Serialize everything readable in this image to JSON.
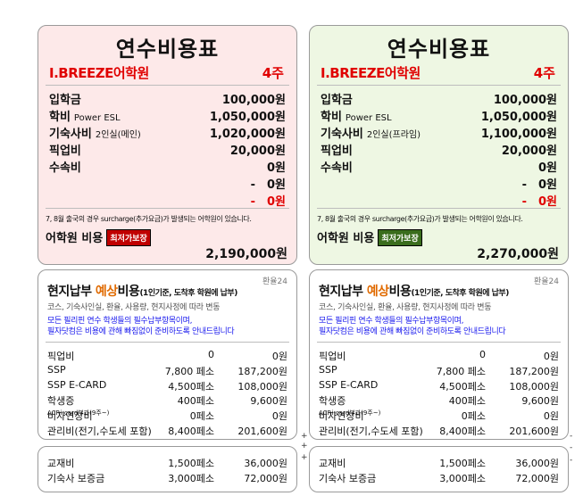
{
  "left": {
    "title": "연수비용표",
    "school": "I.BREEZE어학원",
    "weeks": "4주",
    "fees": [
      {
        "label": "입학금",
        "sub": "",
        "amount": "100,000원"
      },
      {
        "label": "학비",
        "sub": "Power ESL",
        "amount": "1,050,000원"
      },
      {
        "label": "기숙사비",
        "sub": "2인실(메인)",
        "amount": "1,020,000원"
      },
      {
        "label": "픽업비",
        "sub": "",
        "amount": "20,000원"
      },
      {
        "label": "수속비",
        "sub": "",
        "amount": "0원"
      },
      {
        "label": "",
        "sub": "",
        "amount": "-　0원"
      },
      {
        "label": "",
        "sub": "",
        "amount": "-　0원"
      }
    ],
    "note": "7, 8월 출국의 경우 surcharge(추가요금)가 발생되는 어학원이 있습니다.",
    "cost_label": "어학원 비용",
    "badge": "최저가보장",
    "total": "2,190,000원",
    "local": {
      "rate": "환율24",
      "title_a": "현지납부 ",
      "title_hl": "예상",
      "title_b": "비용",
      "title_small": "(1인기준, 도착후 학원에 납부)",
      "grey": "코스, 기숙사인실, 환율, 사용량, 현지사정에 따라 변동",
      "blue1": "모든 필리핀 연수 학생들의 필수납부항목이며,",
      "blue2": "필자닷컴은 비용에 관해 빠짐없이 준비하도록 안내드립니다",
      "rows": [
        {
          "item": "픽업비",
          "sub": "",
          "unit": "0",
          "amount": "0원"
        },
        {
          "item": "SSP",
          "sub": "",
          "unit": "7,800 페소",
          "amount": "187,200원"
        },
        {
          "item": "SSP E-CARD",
          "sub": "",
          "unit": "4,500페소",
          "amount": "108,000원"
        },
        {
          "item": "학생증",
          "sub": "",
          "unit": "400페소",
          "amount": "9,600원"
        },
        {
          "item": "비자연장비",
          "sub": " ACRi-card부과(9주~)",
          "unit": "0페소",
          "amount": "0원"
        },
        {
          "item": "관리비(전기,수도세 포함)",
          "sub": "",
          "unit": "8,400페소",
          "amount": "201,600원"
        }
      ]
    },
    "extra": [
      {
        "item": "교재비",
        "unit": "1,500페소",
        "amount": "36,000원"
      },
      {
        "item": "기숙사 보증금",
        "unit": "3,000페소",
        "amount": "72,000원"
      }
    ]
  },
  "right": {
    "title": "연수비용표",
    "school": "I.BREEZE어학원",
    "weeks": "4주",
    "fees": [
      {
        "label": "입학금",
        "sub": "",
        "amount": "100,000원"
      },
      {
        "label": "학비",
        "sub": "Power ESL",
        "amount": "1,050,000원"
      },
      {
        "label": "기숙사비",
        "sub": "2인실(프라임)",
        "amount": "1,100,000원"
      },
      {
        "label": "픽업비",
        "sub": "",
        "amount": "20,000원"
      },
      {
        "label": "수속비",
        "sub": "",
        "amount": "0원"
      },
      {
        "label": "",
        "sub": "",
        "amount": "-　0원"
      },
      {
        "label": "",
        "sub": "",
        "amount": "-　0원"
      }
    ],
    "note": "7, 8월 출국의 경우 surcharge(추가요금)가 발생되는 어학원이 있습니다.",
    "cost_label": "어학원 비용",
    "badge": "최저가보장",
    "total": "2,270,000원",
    "local": {
      "rate": "환율24",
      "title_a": "현지납부 ",
      "title_hl": "예상",
      "title_b": "비용",
      "title_small": "(1인기준, 도착후 학원에 납부)",
      "grey": "코스, 기숙사인실, 환율, 사용량, 현지사정에 따라 변동",
      "blue1": "모든 필리핀 연수 학생들의 필수납부항목이며,",
      "blue2": "필자닷컴은 비용에 관해 빠짐없이 준비하도록 안내드립니다",
      "rows": [
        {
          "item": "픽업비",
          "sub": "",
          "unit": "0",
          "amount": "0원"
        },
        {
          "item": "SSP",
          "sub": "",
          "unit": "7,800 페소",
          "amount": "187,200원"
        },
        {
          "item": "SSP E-CARD",
          "sub": "",
          "unit": "4,500페소",
          "amount": "108,000원"
        },
        {
          "item": "학생증",
          "sub": "",
          "unit": "400페소",
          "amount": "9,600원"
        },
        {
          "item": "비자연장비",
          "sub": " ACRi-card부과(9주~)",
          "unit": "0페소",
          "amount": "0원"
        },
        {
          "item": "관리비(전기,수도세 포함)",
          "sub": "",
          "unit": "8,400페소",
          "amount": "201,600원"
        }
      ]
    },
    "extra": [
      {
        "item": "교재비",
        "unit": "1,500페소",
        "amount": "36,000원"
      },
      {
        "item": "기숙사 보증금",
        "unit": "3,000페소",
        "amount": "72,000원"
      }
    ]
  },
  "marks": {
    "plus": "+",
    "tick": "-"
  }
}
